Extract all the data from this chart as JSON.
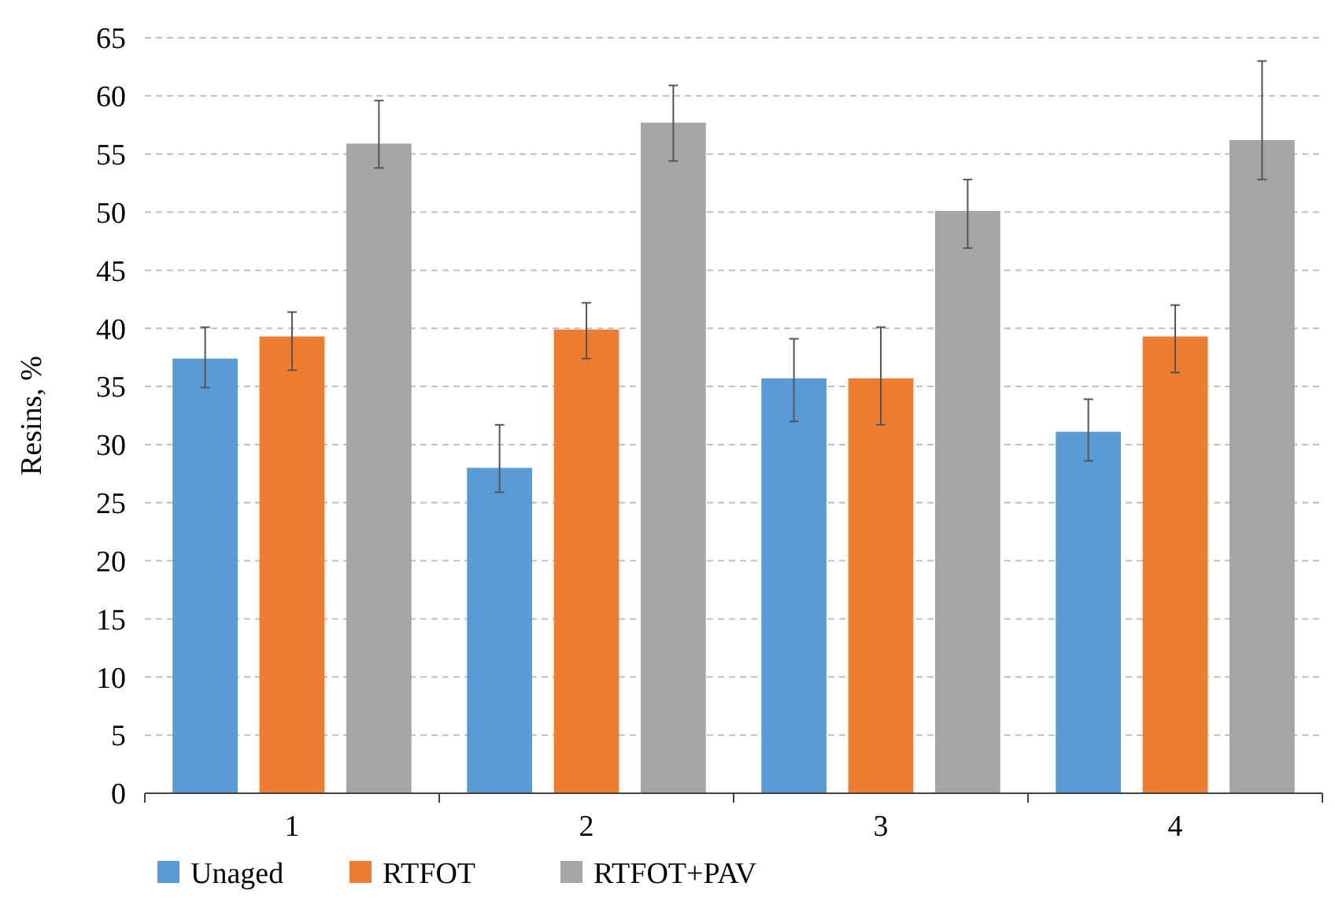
{
  "chart_data": {
    "type": "bar",
    "ylabel": "Resins, %",
    "categories": [
      "1",
      "2",
      "3",
      "4"
    ],
    "series": [
      {
        "name": "Unaged",
        "color": "#5b9bd5",
        "values": [
          37.4,
          28.0,
          35.7,
          31.1
        ],
        "errors": [
          [
            34.9,
            40.1
          ],
          [
            25.9,
            31.7
          ],
          [
            32.0,
            39.1
          ],
          [
            28.6,
            33.9
          ]
        ]
      },
      {
        "name": "RTFOT",
        "color": "#ed7d31",
        "values": [
          39.3,
          39.9,
          35.7,
          39.3
        ],
        "errors": [
          [
            36.4,
            41.4
          ],
          [
            37.4,
            42.2
          ],
          [
            31.7,
            40.1
          ],
          [
            36.2,
            42.0
          ]
        ]
      },
      {
        "name": "RTFOT+PAV",
        "color": "#a5a5a5",
        "values": [
          55.9,
          57.7,
          50.1,
          56.2
        ],
        "errors": [
          [
            53.8,
            59.6
          ],
          [
            54.4,
            60.9
          ],
          [
            46.9,
            52.8
          ],
          [
            52.8,
            63.0
          ]
        ]
      }
    ],
    "ylim": [
      0,
      65
    ],
    "yticks": [
      0,
      5,
      10,
      15,
      20,
      25,
      30,
      35,
      40,
      45,
      50,
      55,
      60,
      65
    ],
    "grid": "y",
    "legend": "bottom"
  }
}
